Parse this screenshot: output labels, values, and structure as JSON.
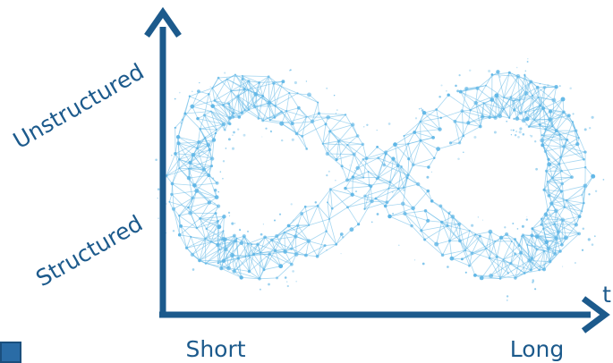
{
  "y_axis": {
    "high_label": "Unstructured",
    "low_label": "Structured"
  },
  "x_axis": {
    "symbol": "t",
    "low_label": "Short",
    "high_label": "Long"
  },
  "graphic": {
    "name": "infinity-network-mesh",
    "color": "#5fb6e6"
  },
  "colors": {
    "axis": "#1c5a8c",
    "mesh": "#5fb6e6",
    "corner": "#2a6ca6"
  }
}
